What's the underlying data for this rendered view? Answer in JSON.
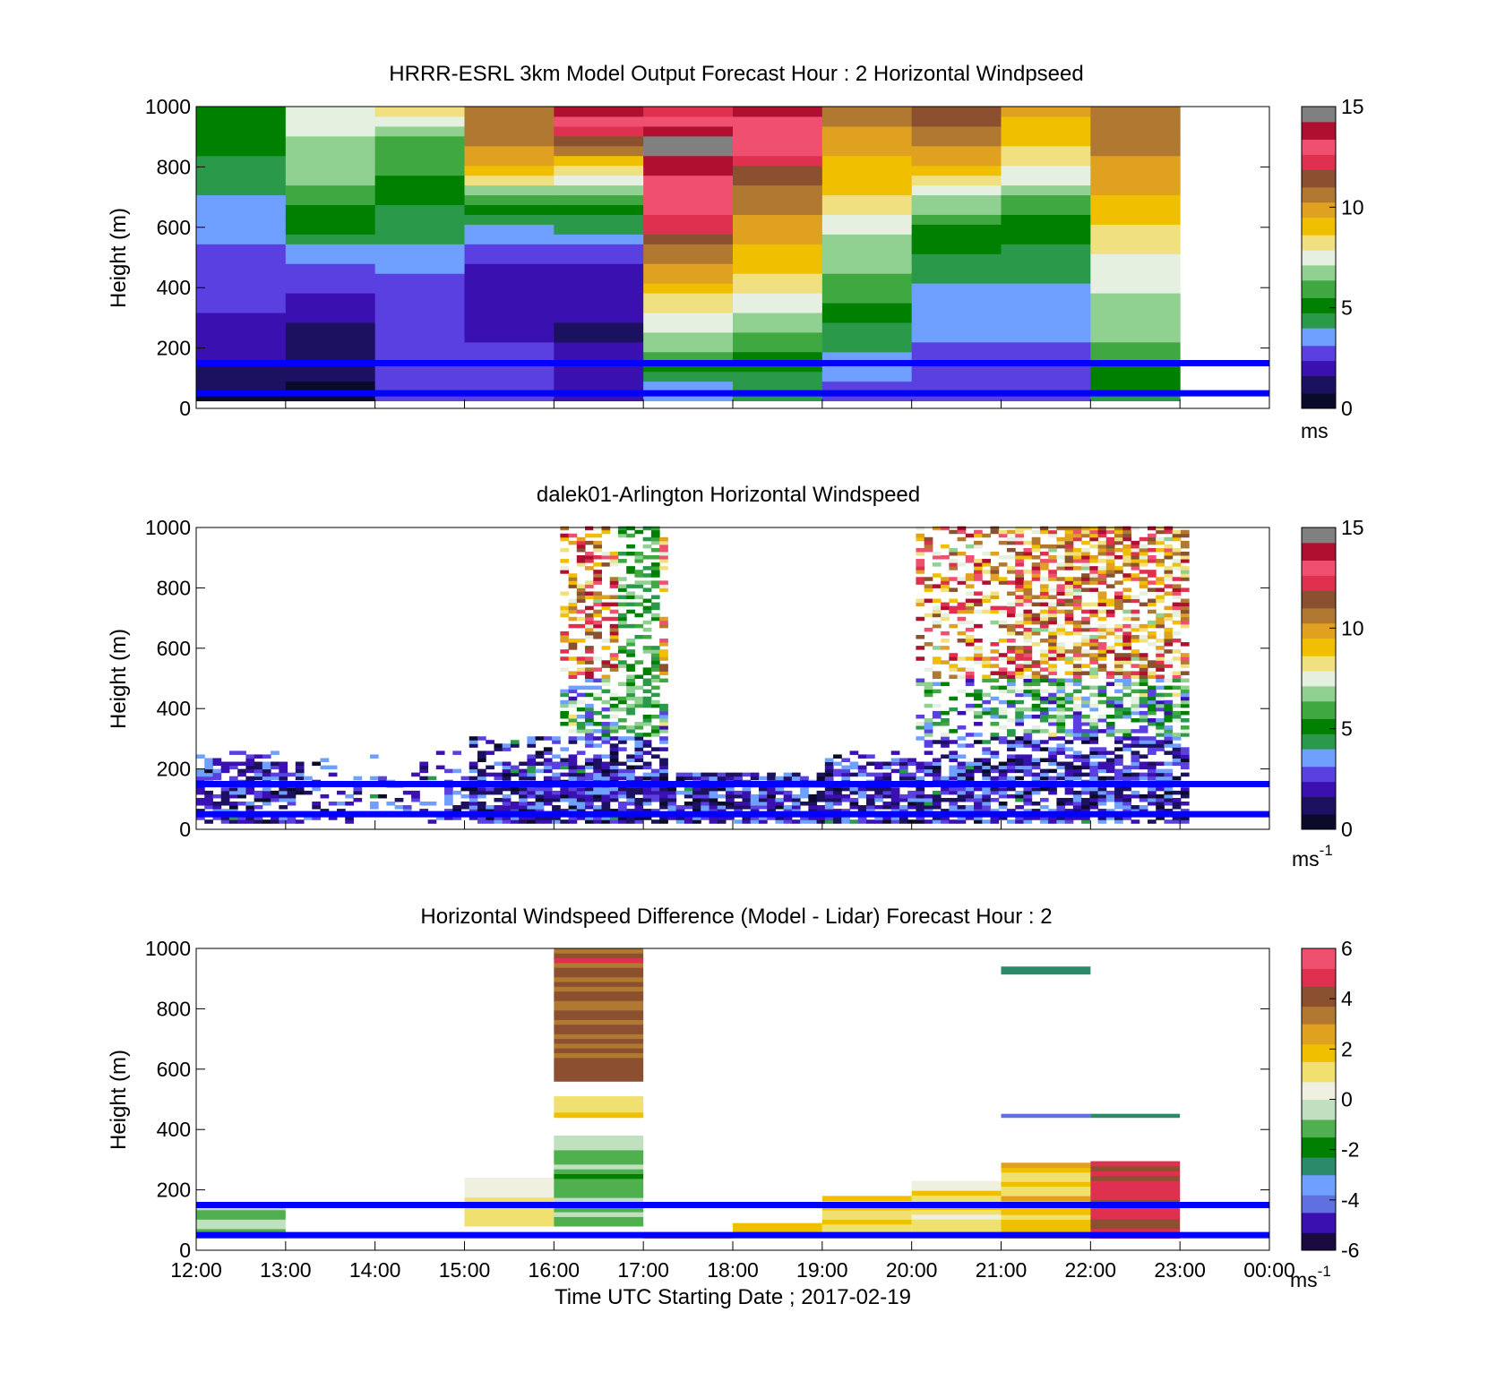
{
  "figure": {
    "xlabel": "Time UTC  Starting Date ; 2017-02-19",
    "x_tick_labels": [
      "12:00",
      "13:00",
      "14:00",
      "15:00",
      "16:00",
      "17:00",
      "18:00",
      "19:00",
      "20:00",
      "21:00",
      "22:00",
      "23:00",
      "00:00"
    ],
    "y_tick_labels": [
      "0",
      "200",
      "400",
      "600",
      "800",
      "1000"
    ],
    "ylabel": "Height (m)"
  },
  "colors": {
    "reference_line": "#0000ff",
    "speed_ramp": [
      "#0a0a2a",
      "#1c1060",
      "#3a10b0",
      "#5a40e0",
      "#70a0ff",
      "#2a9a4a",
      "#008000",
      "#40a840",
      "#90d090",
      "#e6f0e0",
      "#f0e080",
      "#f0c000",
      "#e0a020",
      "#b07830",
      "#8a5030",
      "#e03050",
      "#f05070",
      "#b01030",
      "#808080"
    ],
    "diff_ramp": [
      "#1a0a40",
      "#3a10b0",
      "#6070e0",
      "#70a0ff",
      "#2a8a6a",
      "#008000",
      "#50b050",
      "#c0e0c0",
      "#f0f0e0",
      "#f0e070",
      "#f0c000",
      "#e0a020",
      "#b07830",
      "#8a5030",
      "#e03050",
      "#f05070"
    ]
  },
  "chart_data": [
    {
      "type": "heatmap",
      "title": "HRRR-ESRL 3km Model Output   Forecast Hour : 2 Horizontal Windpseed",
      "colorbar": {
        "ticks": [
          "0",
          "5",
          "10",
          "15"
        ],
        "unit": "ms",
        "superscript": "",
        "range": [
          0,
          15
        ]
      },
      "ylim": [
        0,
        1000
      ],
      "reference_heights_m": [
        50,
        150
      ],
      "grid": "model",
      "hour_columns": [
        [
          0.5,
          1.5,
          2.0,
          2.5,
          3.0,
          3.2,
          3.5,
          4.5,
          5.0,
          5.5
        ],
        [
          0.5,
          1.2,
          1.0,
          2.2,
          2.8,
          4.5,
          5.5,
          6.5,
          7.0,
          7.5
        ],
        [
          2.5,
          2.8,
          2.5,
          3.0,
          3.2,
          4.0,
          4.8,
          5.5,
          6.0,
          8.0
        ],
        [
          2.5,
          2.8,
          2.2,
          2.0,
          2.0,
          3.2,
          5.0,
          9.0,
          10.5,
          11.0
        ],
        [
          1.8,
          2.0,
          1.5,
          1.8,
          2.0,
          3.5,
          5.5,
          7.5,
          11.5,
          13.5
        ],
        [
          3.2,
          5.5,
          7.0,
          8.5,
          10.0,
          11.5,
          13.0,
          13.5,
          14.5,
          12.5
        ],
        [
          4.0,
          5.0,
          6.5,
          7.5,
          9.0,
          9.5,
          10.5,
          11.5,
          13.0,
          13.5
        ],
        [
          3.0,
          3.5,
          4.5,
          5.5,
          6.5,
          7.0,
          8.5,
          9.0,
          10.0,
          10.5
        ],
        [
          2.8,
          3.0,
          3.2,
          3.5,
          4.5,
          5.0,
          6.5,
          9.0,
          10.5,
          11.5
        ],
        [
          2.5,
          3.0,
          3.2,
          3.5,
          4.2,
          4.8,
          6.0,
          7.5,
          9.0,
          9.5
        ],
        [
          4.5,
          5.5,
          6.5,
          7.0,
          7.5,
          8.5,
          9.0,
          10.0,
          10.5,
          10.5
        ]
      ]
    },
    {
      "type": "heatmap",
      "title": "dalek01-Arlington  Horizontal Windspeed",
      "colorbar": {
        "ticks": [
          "0",
          "5",
          "10",
          "15"
        ],
        "unit": "ms",
        "superscript": "-1",
        "range": [
          0,
          15
        ]
      },
      "ylim": [
        0,
        1000
      ],
      "reference_heights_m": [
        50,
        150
      ],
      "grid": "lidar_sparse"
    },
    {
      "type": "heatmap",
      "title": "Horizontal Windspeed Difference (Model - Lidar) Forecast Hour : 2",
      "colorbar": {
        "ticks": [
          "-6",
          "-4",
          "-2",
          "0",
          "2",
          "4",
          "6"
        ],
        "unit": "ms",
        "superscript": "-1",
        "range": [
          -6,
          6
        ]
      },
      "ylim": [
        0,
        1000
      ],
      "reference_heights_m": [
        50,
        150
      ],
      "grid": "difference",
      "segments": [
        {
          "x": [
            12,
            13
          ],
          "y": [
            40,
            150
          ],
          "value": -0.8
        },
        {
          "x": [
            15,
            16
          ],
          "y": [
            80,
            240
          ],
          "value": 0.8
        },
        {
          "x": [
            16,
            17
          ],
          "y": [
            80,
            380
          ],
          "value": -1.0
        },
        {
          "x": [
            16,
            17
          ],
          "y": [
            440,
            510
          ],
          "value": 1.2
        },
        {
          "x": [
            16,
            17
          ],
          "y": [
            560,
            1000
          ],
          "value": 4.0
        },
        {
          "x": [
            17,
            18
          ],
          "y": [
            40,
            60
          ],
          "value": 2.0
        },
        {
          "x": [
            18,
            19
          ],
          "y": [
            40,
            90
          ],
          "value": 1.5
        },
        {
          "x": [
            19,
            20
          ],
          "y": [
            40,
            180
          ],
          "value": 1.5
        },
        {
          "x": [
            20,
            21
          ],
          "y": [
            40,
            230
          ],
          "value": 1.2
        },
        {
          "x": [
            21,
            22
          ],
          "y": [
            40,
            290
          ],
          "value": 1.8
        },
        {
          "x": [
            21,
            22
          ],
          "y": [
            440,
            452
          ],
          "value": -3.8
        },
        {
          "x": [
            21,
            22
          ],
          "y": [
            915,
            940
          ],
          "value": -2.5
        },
        {
          "x": [
            22,
            23
          ],
          "y": [
            40,
            295
          ],
          "value": 4.8
        },
        {
          "x": [
            22,
            23
          ],
          "y": [
            440,
            452
          ],
          "value": -2.8
        }
      ]
    }
  ]
}
